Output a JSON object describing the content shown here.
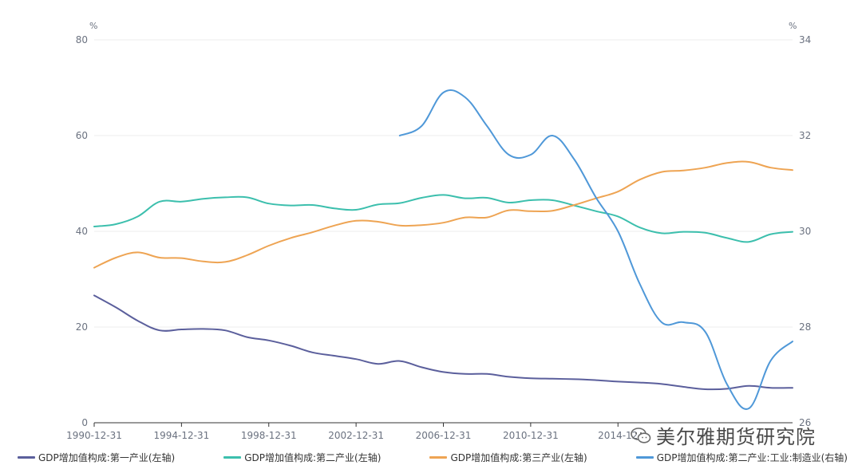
{
  "chart_data": {
    "type": "line",
    "y_left": {
      "unit": "%",
      "ylim": [
        0,
        80
      ],
      "ticks": [
        "0",
        "20",
        "40",
        "60",
        "80"
      ]
    },
    "y_right": {
      "unit": "%",
      "ylim": [
        26,
        34
      ],
      "ticks": [
        "26",
        "28",
        "30",
        "32",
        "34"
      ]
    },
    "x_tick_labels": [
      "1990-12-31",
      "1994-12-31",
      "1998-12-31",
      "2002-12-31",
      "2006-12-31",
      "2010-12-31",
      "2014-12"
    ],
    "x": [
      1990,
      1991,
      1992,
      1993,
      1994,
      1995,
      1996,
      1997,
      1998,
      1999,
      2000,
      2001,
      2002,
      2003,
      2004,
      2005,
      2006,
      2007,
      2008,
      2009,
      2010,
      2011,
      2012,
      2013,
      2014,
      2015,
      2016,
      2017,
      2018,
      2019,
      2020,
      2021,
      2022
    ],
    "grid": true,
    "legend_position": "bottom",
    "series": [
      {
        "name": "GDP增加值构成:第一产业(左轴)",
        "axis": "left",
        "color": "#5b5f9c",
        "values": [
          26.6,
          24.1,
          21.3,
          19.3,
          19.5,
          19.6,
          19.3,
          17.9,
          17.2,
          16.1,
          14.7,
          14.0,
          13.3,
          12.3,
          12.9,
          11.6,
          10.6,
          10.2,
          10.2,
          9.6,
          9.3,
          9.2,
          9.1,
          8.9,
          8.6,
          8.4,
          8.1,
          7.5,
          7.0,
          7.1,
          7.7,
          7.3,
          7.3
        ]
      },
      {
        "name": "GDP增加值构成:第二产业(左轴)",
        "axis": "left",
        "color": "#3cbfad",
        "values": [
          41.0,
          41.5,
          43.1,
          46.2,
          46.2,
          46.8,
          47.1,
          47.1,
          45.8,
          45.4,
          45.5,
          44.8,
          44.5,
          45.6,
          45.9,
          47.0,
          47.6,
          46.9,
          47.0,
          46.0,
          46.5,
          46.5,
          45.4,
          44.2,
          43.1,
          40.8,
          39.6,
          39.9,
          39.7,
          38.6,
          37.8,
          39.4,
          39.9
        ]
      },
      {
        "name": "GDP增加值构成:第三产业(左轴)",
        "axis": "left",
        "color": "#eea453",
        "values": [
          32.4,
          34.5,
          35.6,
          34.5,
          34.4,
          33.7,
          33.6,
          35.0,
          37.0,
          38.6,
          39.8,
          41.2,
          42.2,
          42.0,
          41.2,
          41.3,
          41.8,
          42.9,
          42.9,
          44.4,
          44.2,
          44.3,
          45.5,
          46.9,
          48.3,
          50.8,
          52.4,
          52.7,
          53.3,
          54.3,
          54.5,
          53.3,
          52.8
        ]
      },
      {
        "name": "GDP增加值构成:第二产业:工业:制造业(右轴)",
        "axis": "right",
        "color": "#4f98d8",
        "x": [
          2004,
          2005,
          2006,
          2007,
          2008,
          2009,
          2010,
          2011,
          2012,
          2013,
          2014,
          2015,
          2016,
          2017,
          2018,
          2019,
          2020,
          2021,
          2022
        ],
        "values": [
          32.0,
          32.2,
          32.9,
          32.8,
          32.2,
          31.6,
          31.6,
          32.0,
          31.5,
          30.7,
          30.0,
          28.9,
          28.1,
          28.1,
          27.9,
          26.8,
          26.3,
          27.3,
          27.7
        ]
      }
    ]
  },
  "watermark": {
    "text": "美尔雅期货研究院",
    "icon": "wechat-icon"
  }
}
